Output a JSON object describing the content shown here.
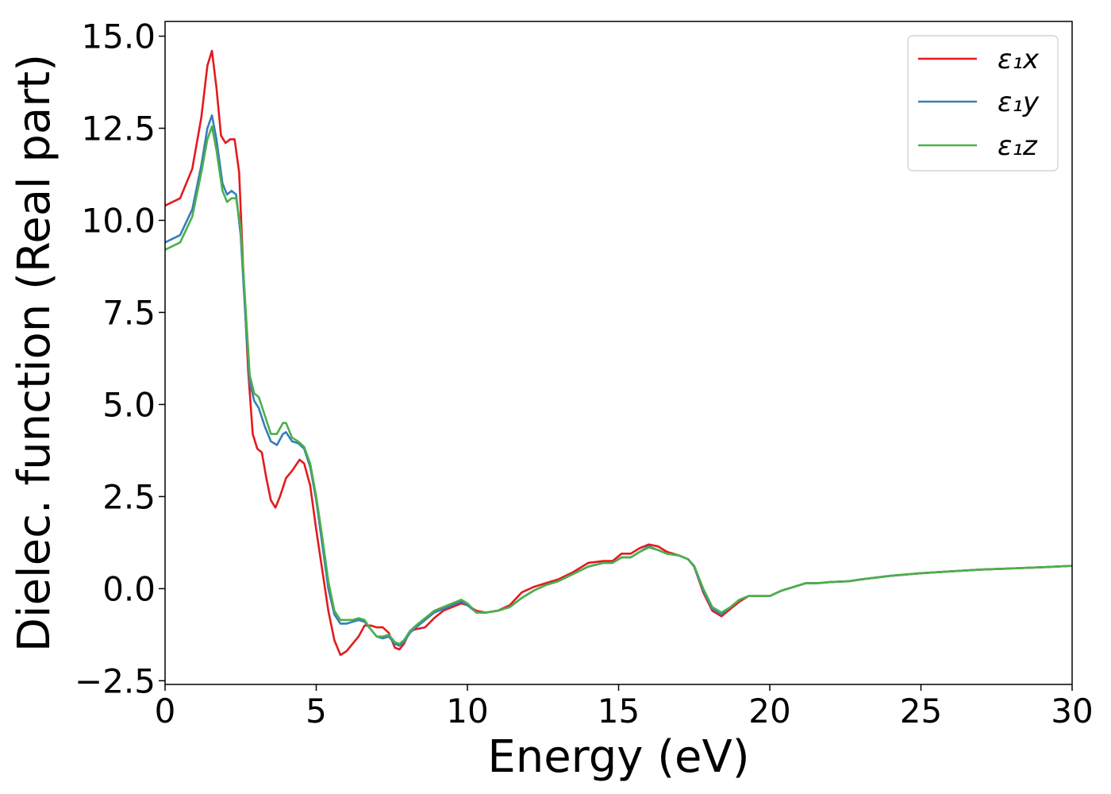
{
  "chart_data": {
    "type": "line",
    "xlabel": "Energy (eV)",
    "ylabel": "Dielec. function (Real part)",
    "xlim": [
      0,
      30
    ],
    "ylim": [
      -2.6,
      15.4
    ],
    "xticks": [
      0,
      5,
      10,
      15,
      20,
      25,
      30
    ],
    "xtick_labels": [
      "0",
      "5",
      "10",
      "15",
      "20",
      "25",
      "30"
    ],
    "yticks": [
      -2.5,
      0,
      2.5,
      5,
      7.5,
      10,
      12.5,
      15
    ],
    "ytick_labels": [
      "−2.5",
      "0.0",
      "2.5",
      "5.0",
      "7.5",
      "10.0",
      "12.5",
      "15.0"
    ],
    "grid": false,
    "legend_position": "top-right",
    "series": [
      {
        "name": "ε₁x",
        "color": "#e41a1c",
        "points": [
          [
            0,
            10.4
          ],
          [
            0.5,
            10.6
          ],
          [
            0.9,
            11.4
          ],
          [
            1.2,
            12.8
          ],
          [
            1.4,
            14.2
          ],
          [
            1.55,
            14.6
          ],
          [
            1.7,
            13.6
          ],
          [
            1.85,
            12.3
          ],
          [
            2.0,
            12.1
          ],
          [
            2.15,
            12.2
          ],
          [
            2.3,
            12.2
          ],
          [
            2.45,
            11.3
          ],
          [
            2.6,
            8.4
          ],
          [
            2.75,
            5.9
          ],
          [
            2.9,
            4.2
          ],
          [
            3.05,
            3.8
          ],
          [
            3.2,
            3.7
          ],
          [
            3.35,
            3.0
          ],
          [
            3.5,
            2.4
          ],
          [
            3.65,
            2.2
          ],
          [
            3.8,
            2.5
          ],
          [
            4.0,
            3.0
          ],
          [
            4.2,
            3.2
          ],
          [
            4.45,
            3.5
          ],
          [
            4.6,
            3.4
          ],
          [
            4.8,
            2.8
          ],
          [
            5.0,
            1.6
          ],
          [
            5.2,
            0.5
          ],
          [
            5.4,
            -0.6
          ],
          [
            5.6,
            -1.4
          ],
          [
            5.8,
            -1.8
          ],
          [
            6.0,
            -1.7
          ],
          [
            6.2,
            -1.5
          ],
          [
            6.4,
            -1.3
          ],
          [
            6.6,
            -1.0
          ],
          [
            6.8,
            -1.0
          ],
          [
            7.0,
            -1.05
          ],
          [
            7.2,
            -1.05
          ],
          [
            7.4,
            -1.2
          ],
          [
            7.6,
            -1.6
          ],
          [
            7.75,
            -1.65
          ],
          [
            7.9,
            -1.5
          ],
          [
            8.1,
            -1.15
          ],
          [
            8.3,
            -1.1
          ],
          [
            8.6,
            -1.05
          ],
          [
            8.9,
            -0.8
          ],
          [
            9.2,
            -0.6
          ],
          [
            9.5,
            -0.5
          ],
          [
            9.8,
            -0.4
          ],
          [
            10.0,
            -0.45
          ],
          [
            10.3,
            -0.6
          ],
          [
            10.6,
            -0.65
          ],
          [
            11.0,
            -0.6
          ],
          [
            11.4,
            -0.45
          ],
          [
            11.8,
            -0.1
          ],
          [
            12.2,
            0.05
          ],
          [
            12.6,
            0.15
          ],
          [
            13.0,
            0.25
          ],
          [
            13.5,
            0.45
          ],
          [
            14.0,
            0.7
          ],
          [
            14.5,
            0.75
          ],
          [
            14.8,
            0.75
          ],
          [
            15.1,
            0.95
          ],
          [
            15.4,
            0.95
          ],
          [
            15.7,
            1.1
          ],
          [
            16.0,
            1.2
          ],
          [
            16.3,
            1.15
          ],
          [
            16.6,
            1.0
          ],
          [
            17.0,
            0.9
          ],
          [
            17.3,
            0.8
          ],
          [
            17.5,
            0.6
          ],
          [
            17.8,
            -0.1
          ],
          [
            18.1,
            -0.6
          ],
          [
            18.4,
            -0.75
          ],
          [
            18.7,
            -0.55
          ],
          [
            19.0,
            -0.35
          ],
          [
            19.3,
            -0.2
          ],
          [
            19.6,
            -0.2
          ],
          [
            20.0,
            -0.2
          ],
          [
            20.4,
            -0.05
          ],
          [
            20.8,
            0.05
          ],
          [
            21.2,
            0.15
          ],
          [
            21.6,
            0.15
          ],
          [
            22.0,
            0.18
          ],
          [
            22.6,
            0.2
          ],
          [
            23.0,
            0.25
          ],
          [
            24.0,
            0.35
          ],
          [
            25.0,
            0.42
          ],
          [
            26.0,
            0.47
          ],
          [
            27.0,
            0.52
          ],
          [
            28.0,
            0.55
          ],
          [
            29.0,
            0.58
          ],
          [
            30.0,
            0.62
          ]
        ]
      },
      {
        "name": "ε₁y",
        "color": "#377eb8",
        "points": [
          [
            0,
            9.4
          ],
          [
            0.5,
            9.6
          ],
          [
            0.9,
            10.3
          ],
          [
            1.2,
            11.5
          ],
          [
            1.4,
            12.5
          ],
          [
            1.55,
            12.85
          ],
          [
            1.7,
            12.2
          ],
          [
            1.9,
            11.0
          ],
          [
            2.05,
            10.7
          ],
          [
            2.2,
            10.8
          ],
          [
            2.35,
            10.7
          ],
          [
            2.5,
            9.6
          ],
          [
            2.65,
            7.5
          ],
          [
            2.8,
            5.6
          ],
          [
            2.95,
            5.1
          ],
          [
            3.1,
            4.9
          ],
          [
            3.3,
            4.4
          ],
          [
            3.5,
            4.0
          ],
          [
            3.7,
            3.9
          ],
          [
            3.9,
            4.2
          ],
          [
            4.0,
            4.25
          ],
          [
            4.2,
            4.0
          ],
          [
            4.4,
            3.95
          ],
          [
            4.6,
            3.8
          ],
          [
            4.8,
            3.3
          ],
          [
            5.0,
            2.4
          ],
          [
            5.2,
            1.2
          ],
          [
            5.4,
            0.0
          ],
          [
            5.6,
            -0.7
          ],
          [
            5.8,
            -0.95
          ],
          [
            6.0,
            -0.95
          ],
          [
            6.2,
            -0.9
          ],
          [
            6.4,
            -0.85
          ],
          [
            6.6,
            -0.9
          ],
          [
            6.8,
            -1.1
          ],
          [
            7.0,
            -1.3
          ],
          [
            7.2,
            -1.35
          ],
          [
            7.4,
            -1.3
          ],
          [
            7.6,
            -1.5
          ],
          [
            7.75,
            -1.55
          ],
          [
            7.9,
            -1.45
          ],
          [
            8.1,
            -1.2
          ],
          [
            8.3,
            -1.05
          ],
          [
            8.6,
            -0.85
          ],
          [
            8.9,
            -0.65
          ],
          [
            9.2,
            -0.55
          ],
          [
            9.5,
            -0.45
          ],
          [
            9.8,
            -0.35
          ],
          [
            10.0,
            -0.45
          ],
          [
            10.3,
            -0.65
          ],
          [
            10.6,
            -0.65
          ],
          [
            11.0,
            -0.6
          ],
          [
            11.4,
            -0.5
          ],
          [
            11.8,
            -0.25
          ],
          [
            12.2,
            -0.05
          ],
          [
            12.6,
            0.1
          ],
          [
            13.0,
            0.2
          ],
          [
            13.5,
            0.4
          ],
          [
            14.0,
            0.6
          ],
          [
            14.5,
            0.7
          ],
          [
            14.8,
            0.7
          ],
          [
            15.1,
            0.85
          ],
          [
            15.4,
            0.85
          ],
          [
            15.7,
            1.0
          ],
          [
            16.0,
            1.15
          ],
          [
            16.3,
            1.05
          ],
          [
            16.6,
            0.95
          ],
          [
            17.0,
            0.9
          ],
          [
            17.3,
            0.8
          ],
          [
            17.5,
            0.6
          ],
          [
            17.8,
            -0.05
          ],
          [
            18.1,
            -0.55
          ],
          [
            18.4,
            -0.7
          ],
          [
            18.7,
            -0.5
          ],
          [
            19.0,
            -0.3
          ],
          [
            19.3,
            -0.2
          ],
          [
            19.6,
            -0.2
          ],
          [
            20.0,
            -0.2
          ],
          [
            20.4,
            -0.05
          ],
          [
            20.8,
            0.05
          ],
          [
            21.2,
            0.15
          ],
          [
            21.6,
            0.15
          ],
          [
            22.0,
            0.18
          ],
          [
            22.6,
            0.2
          ],
          [
            23.0,
            0.25
          ],
          [
            24.0,
            0.35
          ],
          [
            25.0,
            0.42
          ],
          [
            26.0,
            0.47
          ],
          [
            27.0,
            0.52
          ],
          [
            28.0,
            0.55
          ],
          [
            29.0,
            0.58
          ],
          [
            30.0,
            0.62
          ]
        ]
      },
      {
        "name": "ε₁z",
        "color": "#4daf4a",
        "points": [
          [
            0,
            9.2
          ],
          [
            0.5,
            9.4
          ],
          [
            0.9,
            10.1
          ],
          [
            1.2,
            11.3
          ],
          [
            1.4,
            12.2
          ],
          [
            1.55,
            12.55
          ],
          [
            1.7,
            11.9
          ],
          [
            1.9,
            10.8
          ],
          [
            2.05,
            10.5
          ],
          [
            2.2,
            10.6
          ],
          [
            2.35,
            10.6
          ],
          [
            2.5,
            9.8
          ],
          [
            2.65,
            7.8
          ],
          [
            2.8,
            5.8
          ],
          [
            2.95,
            5.3
          ],
          [
            3.1,
            5.2
          ],
          [
            3.3,
            4.7
          ],
          [
            3.5,
            4.2
          ],
          [
            3.7,
            4.2
          ],
          [
            3.9,
            4.5
          ],
          [
            4.0,
            4.5
          ],
          [
            4.2,
            4.1
          ],
          [
            4.4,
            4.0
          ],
          [
            4.6,
            3.85
          ],
          [
            4.8,
            3.4
          ],
          [
            5.0,
            2.5
          ],
          [
            5.2,
            1.4
          ],
          [
            5.4,
            0.2
          ],
          [
            5.6,
            -0.6
          ],
          [
            5.8,
            -0.85
          ],
          [
            6.0,
            -0.85
          ],
          [
            6.2,
            -0.85
          ],
          [
            6.4,
            -0.8
          ],
          [
            6.6,
            -0.85
          ],
          [
            6.8,
            -1.1
          ],
          [
            7.0,
            -1.3
          ],
          [
            7.2,
            -1.3
          ],
          [
            7.4,
            -1.25
          ],
          [
            7.6,
            -1.45
          ],
          [
            7.75,
            -1.5
          ],
          [
            7.9,
            -1.4
          ],
          [
            8.1,
            -1.15
          ],
          [
            8.3,
            -1.0
          ],
          [
            8.6,
            -0.8
          ],
          [
            8.9,
            -0.6
          ],
          [
            9.2,
            -0.5
          ],
          [
            9.5,
            -0.4
          ],
          [
            9.8,
            -0.3
          ],
          [
            10.0,
            -0.4
          ],
          [
            10.3,
            -0.65
          ],
          [
            10.6,
            -0.65
          ],
          [
            11.0,
            -0.6
          ],
          [
            11.4,
            -0.5
          ],
          [
            11.8,
            -0.25
          ],
          [
            12.2,
            -0.05
          ],
          [
            12.6,
            0.1
          ],
          [
            13.0,
            0.2
          ],
          [
            13.5,
            0.4
          ],
          [
            14.0,
            0.6
          ],
          [
            14.5,
            0.7
          ],
          [
            14.8,
            0.7
          ],
          [
            15.1,
            0.85
          ],
          [
            15.4,
            0.85
          ],
          [
            15.7,
            1.0
          ],
          [
            16.0,
            1.12
          ],
          [
            16.3,
            1.05
          ],
          [
            16.6,
            0.95
          ],
          [
            17.0,
            0.9
          ],
          [
            17.3,
            0.8
          ],
          [
            17.5,
            0.62
          ],
          [
            17.8,
            0.0
          ],
          [
            18.1,
            -0.5
          ],
          [
            18.4,
            -0.65
          ],
          [
            18.7,
            -0.5
          ],
          [
            19.0,
            -0.3
          ],
          [
            19.3,
            -0.2
          ],
          [
            19.6,
            -0.2
          ],
          [
            20.0,
            -0.2
          ],
          [
            20.4,
            -0.05
          ],
          [
            20.8,
            0.05
          ],
          [
            21.2,
            0.15
          ],
          [
            21.6,
            0.15
          ],
          [
            22.0,
            0.18
          ],
          [
            22.6,
            0.2
          ],
          [
            23.0,
            0.25
          ],
          [
            24.0,
            0.35
          ],
          [
            25.0,
            0.42
          ],
          [
            26.0,
            0.47
          ],
          [
            27.0,
            0.52
          ],
          [
            28.0,
            0.55
          ],
          [
            29.0,
            0.58
          ],
          [
            30.0,
            0.62
          ]
        ]
      }
    ]
  }
}
